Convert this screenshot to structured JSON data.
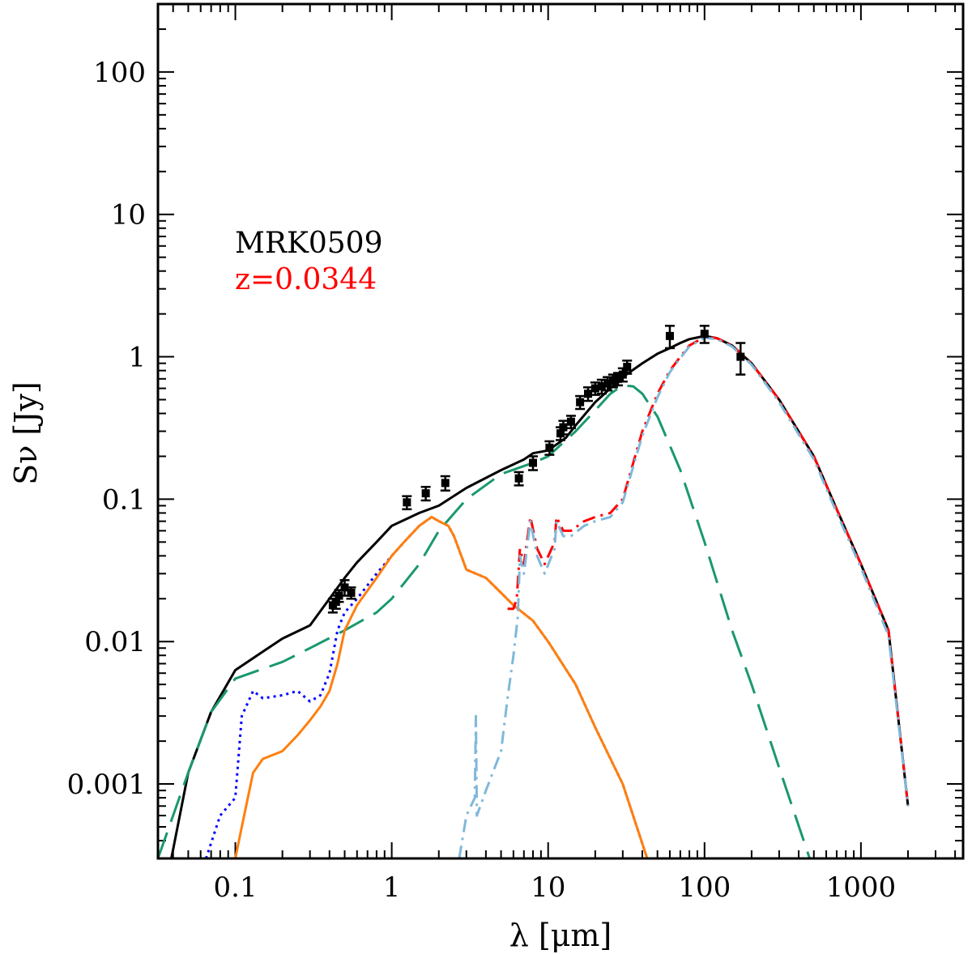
{
  "chart_data": {
    "type": "line",
    "xlabel": "λ [μm]",
    "ylabel": "Sν [Jy]",
    "xscale": "log",
    "yscale": "log",
    "xlim": [
      0.032,
      4500
    ],
    "ylim": [
      0.0003,
      300
    ],
    "x_ticks": [
      0.1,
      1,
      10,
      100,
      1000
    ],
    "x_tick_labels": [
      "0.1",
      "1",
      "10",
      "100",
      "1000"
    ],
    "y_ticks": [
      0.001,
      0.01,
      0.1,
      1,
      10,
      100
    ],
    "y_tick_labels": [
      "0.001",
      "0.01",
      "0.1",
      "1",
      "10",
      "100"
    ],
    "grid": false,
    "annotations": [
      {
        "text": "MRK0509",
        "color": "#000000"
      },
      {
        "text": "z=0.0344",
        "color": "#ff0000"
      }
    ],
    "series": [
      {
        "style": "solid",
        "color": "#000000",
        "points": [
          [
            0.032,
            0.0001
          ],
          [
            0.05,
            0.0012
          ],
          [
            0.07,
            0.0032
          ],
          [
            0.1,
            0.0063
          ],
          [
            0.15,
            0.0085
          ],
          [
            0.2,
            0.0105
          ],
          [
            0.3,
            0.013
          ],
          [
            0.4,
            0.02
          ],
          [
            0.5,
            0.028
          ],
          [
            0.6,
            0.036
          ],
          [
            0.8,
            0.05
          ],
          [
            1.0,
            0.065
          ],
          [
            1.5,
            0.08
          ],
          [
            2,
            0.09
          ],
          [
            3,
            0.12
          ],
          [
            5,
            0.16
          ],
          [
            7,
            0.19
          ],
          [
            8,
            0.21
          ],
          [
            10,
            0.22
          ],
          [
            13,
            0.27
          ],
          [
            15,
            0.33
          ],
          [
            20,
            0.48
          ],
          [
            25,
            0.6
          ],
          [
            30,
            0.72
          ],
          [
            40,
            0.9
          ],
          [
            50,
            1.05
          ],
          [
            60,
            1.15
          ],
          [
            70,
            1.25
          ],
          [
            80,
            1.33
          ],
          [
            100,
            1.4
          ],
          [
            120,
            1.35
          ],
          [
            150,
            1.2
          ],
          [
            200,
            0.9
          ],
          [
            300,
            0.5
          ],
          [
            500,
            0.2
          ],
          [
            700,
            0.085
          ],
          [
            1000,
            0.035
          ],
          [
            1500,
            0.012
          ],
          [
            2000,
            0.0007
          ]
        ]
      },
      {
        "style": "long-dash",
        "color": "#1a9870",
        "points": [
          [
            0.032,
            0.0003
          ],
          [
            0.05,
            0.0012
          ],
          [
            0.07,
            0.0032
          ],
          [
            0.1,
            0.0055
          ],
          [
            0.2,
            0.0072
          ],
          [
            0.3,
            0.009
          ],
          [
            0.5,
            0.012
          ],
          [
            0.8,
            0.016
          ],
          [
            1.0,
            0.02
          ],
          [
            1.5,
            0.035
          ],
          [
            2,
            0.06
          ],
          [
            3,
            0.1
          ],
          [
            5,
            0.15
          ],
          [
            8,
            0.18
          ],
          [
            10,
            0.2
          ],
          [
            15,
            0.3
          ],
          [
            20,
            0.42
          ],
          [
            25,
            0.55
          ],
          [
            30,
            0.63
          ],
          [
            35,
            0.62
          ],
          [
            40,
            0.55
          ],
          [
            50,
            0.38
          ],
          [
            70,
            0.16
          ],
          [
            100,
            0.05
          ],
          [
            150,
            0.012
          ],
          [
            200,
            0.005
          ],
          [
            300,
            0.0013
          ],
          [
            470,
            0.0003
          ]
        ]
      },
      {
        "style": "dotted",
        "color": "#0000ff",
        "points": [
          [
            0.065,
            0.0003
          ],
          [
            0.08,
            0.0006
          ],
          [
            0.1,
            0.0008
          ],
          [
            0.11,
            0.003
          ],
          [
            0.13,
            0.0045
          ],
          [
            0.15,
            0.004
          ],
          [
            0.2,
            0.0042
          ],
          [
            0.25,
            0.0045
          ],
          [
            0.3,
            0.0038
          ],
          [
            0.35,
            0.0042
          ],
          [
            0.4,
            0.006
          ],
          [
            0.45,
            0.012
          ],
          [
            0.5,
            0.016
          ],
          [
            0.6,
            0.02
          ],
          [
            0.8,
            0.03
          ],
          [
            1,
            0.04
          ],
          [
            1.2,
            0.05
          ],
          [
            1.5,
            0.065
          ],
          [
            1.8,
            0.075
          ],
          [
            2,
            0.07
          ],
          [
            2.3,
            0.065
          ],
          [
            2.5,
            0.055
          ],
          [
            3,
            0.032
          ],
          [
            4,
            0.028
          ],
          [
            5,
            0.022
          ],
          [
            6,
            0.018
          ],
          [
            8,
            0.014
          ],
          [
            10,
            0.01
          ],
          [
            15,
            0.005
          ],
          [
            20,
            0.0025
          ],
          [
            30,
            0.001
          ],
          [
            43,
            0.0003
          ]
        ]
      },
      {
        "style": "solid",
        "color": "#ff7f0e",
        "points": [
          [
            0.1,
            0.0003
          ],
          [
            0.11,
            0.0005
          ],
          [
            0.13,
            0.0012
          ],
          [
            0.15,
            0.0015
          ],
          [
            0.2,
            0.0017
          ],
          [
            0.25,
            0.0022
          ],
          [
            0.3,
            0.0028
          ],
          [
            0.35,
            0.0035
          ],
          [
            0.4,
            0.0045
          ],
          [
            0.45,
            0.007
          ],
          [
            0.5,
            0.012
          ],
          [
            0.6,
            0.018
          ],
          [
            0.8,
            0.028
          ],
          [
            1,
            0.04
          ],
          [
            1.2,
            0.05
          ],
          [
            1.5,
            0.065
          ],
          [
            1.8,
            0.075
          ],
          [
            2,
            0.07
          ],
          [
            2.3,
            0.065
          ],
          [
            2.5,
            0.055
          ],
          [
            3,
            0.032
          ],
          [
            4,
            0.028
          ],
          [
            5,
            0.022
          ],
          [
            6,
            0.018
          ],
          [
            8,
            0.014
          ],
          [
            10,
            0.01
          ],
          [
            15,
            0.005
          ],
          [
            20,
            0.0025
          ],
          [
            30,
            0.001
          ],
          [
            43,
            0.0003
          ]
        ]
      },
      {
        "style": "dash-dot",
        "color": "#ff0000",
        "points": [
          [
            5.5,
            0.017
          ],
          [
            6,
            0.017
          ],
          [
            6.3,
            0.02
          ],
          [
            6.6,
            0.045
          ],
          [
            7,
            0.035
          ],
          [
            7.7,
            0.075
          ],
          [
            8.5,
            0.045
          ],
          [
            9.5,
            0.035
          ],
          [
            11,
            0.05
          ],
          [
            11.3,
            0.075
          ],
          [
            12.5,
            0.06
          ],
          [
            14,
            0.06
          ],
          [
            17,
            0.07
          ],
          [
            20,
            0.075
          ],
          [
            25,
            0.08
          ],
          [
            30,
            0.1
          ],
          [
            35,
            0.18
          ],
          [
            40,
            0.3
          ],
          [
            50,
            0.55
          ],
          [
            60,
            0.8
          ],
          [
            70,
            1.0
          ],
          [
            80,
            1.2
          ],
          [
            100,
            1.38
          ],
          [
            120,
            1.35
          ],
          [
            150,
            1.2
          ],
          [
            200,
            0.9
          ],
          [
            300,
            0.5
          ],
          [
            500,
            0.2
          ],
          [
            700,
            0.085
          ],
          [
            1000,
            0.035
          ],
          [
            1500,
            0.012
          ],
          [
            2000,
            0.0007
          ]
        ]
      },
      {
        "style": "dash-dot",
        "color": "#7fb8da",
        "points": [
          [
            2.7,
            0.0003
          ],
          [
            3.0,
            0.0006
          ],
          [
            3.4,
            0.0008
          ],
          [
            3.45,
            0.003
          ],
          [
            3.5,
            0.0006
          ],
          [
            4,
            0.0009
          ],
          [
            5,
            0.0017
          ],
          [
            5.5,
            0.004
          ],
          [
            6,
            0.008
          ],
          [
            6.4,
            0.015
          ],
          [
            6.6,
            0.04
          ],
          [
            7,
            0.03
          ],
          [
            7.7,
            0.07
          ],
          [
            8.5,
            0.04
          ],
          [
            9.5,
            0.03
          ],
          [
            11,
            0.045
          ],
          [
            11.3,
            0.07
          ],
          [
            12.5,
            0.055
          ],
          [
            14,
            0.055
          ],
          [
            17,
            0.065
          ],
          [
            20,
            0.07
          ],
          [
            25,
            0.075
          ],
          [
            30,
            0.095
          ],
          [
            35,
            0.17
          ],
          [
            40,
            0.28
          ],
          [
            50,
            0.52
          ],
          [
            60,
            0.78
          ],
          [
            70,
            0.98
          ],
          [
            80,
            1.18
          ],
          [
            100,
            1.36
          ],
          [
            120,
            1.33
          ],
          [
            150,
            1.18
          ],
          [
            200,
            0.88
          ],
          [
            300,
            0.48
          ],
          [
            500,
            0.19
          ],
          [
            700,
            0.08
          ],
          [
            1000,
            0.033
          ],
          [
            1500,
            0.011
          ],
          [
            2000,
            0.0007
          ]
        ]
      }
    ],
    "observed_points": [
      {
        "x": 0.42,
        "y": 0.018,
        "err": 0.002
      },
      {
        "x": 0.44,
        "y": 0.019,
        "err": 0.002
      },
      {
        "x": 0.46,
        "y": 0.021,
        "err": 0.002
      },
      {
        "x": 0.5,
        "y": 0.024,
        "err": 0.003
      },
      {
        "x": 0.55,
        "y": 0.022,
        "err": 0.002
      },
      {
        "x": 1.25,
        "y": 0.095,
        "err": 0.01
      },
      {
        "x": 1.65,
        "y": 0.11,
        "err": 0.012
      },
      {
        "x": 2.2,
        "y": 0.13,
        "err": 0.015
      },
      {
        "x": 6.5,
        "y": 0.14,
        "err": 0.015
      },
      {
        "x": 8.0,
        "y": 0.18,
        "err": 0.02
      },
      {
        "x": 10.2,
        "y": 0.23,
        "err": 0.025
      },
      {
        "x": 12,
        "y": 0.29,
        "err": 0.03
      },
      {
        "x": 12.5,
        "y": 0.32,
        "err": 0.035
      },
      {
        "x": 14,
        "y": 0.35,
        "err": 0.035
      },
      {
        "x": 16,
        "y": 0.48,
        "err": 0.05
      },
      {
        "x": 18,
        "y": 0.55,
        "err": 0.06
      },
      {
        "x": 20,
        "y": 0.6,
        "err": 0.06
      },
      {
        "x": 22,
        "y": 0.62,
        "err": 0.07
      },
      {
        "x": 24,
        "y": 0.65,
        "err": 0.07
      },
      {
        "x": 26,
        "y": 0.68,
        "err": 0.07
      },
      {
        "x": 28,
        "y": 0.7,
        "err": 0.07
      },
      {
        "x": 30,
        "y": 0.75,
        "err": 0.08
      },
      {
        "x": 32,
        "y": 0.85,
        "err": 0.09
      },
      {
        "x": 60,
        "y": 1.4,
        "err": 0.25
      },
      {
        "x": 100,
        "y": 1.45,
        "err": 0.2
      },
      {
        "x": 170,
        "y": 1.0,
        "err": 0.25
      }
    ]
  }
}
